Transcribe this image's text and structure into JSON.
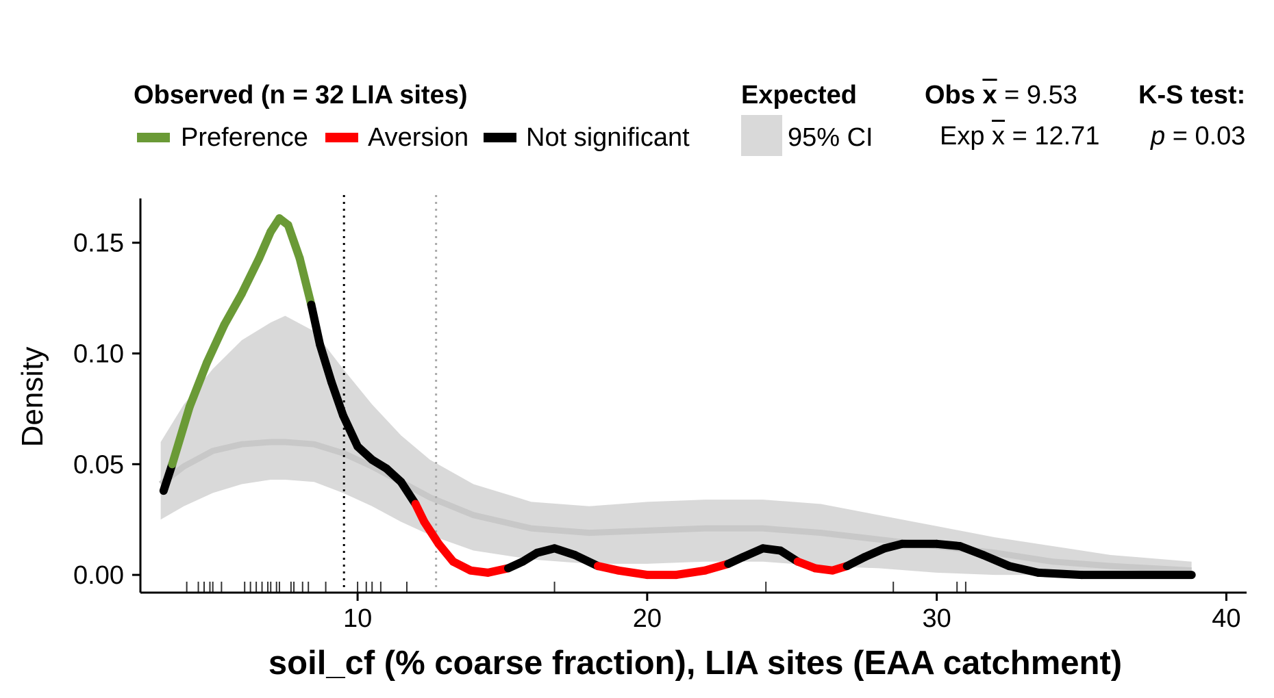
{
  "legend": {
    "observed_title": "Observed (n = 32 LIA sites)",
    "items": [
      {
        "label": "Preference",
        "color": "#6a9a36"
      },
      {
        "label": "Aversion",
        "color": "#ff0000"
      },
      {
        "label": "Not significant",
        "color": "#000000"
      }
    ],
    "expected_title": "Expected",
    "ci_label": "95% CI",
    "ci_color": "#d9d9d9",
    "obs_mean_prefix": "Obs",
    "obs_mean_symbol": "x",
    "obs_mean_value": " = 9.53",
    "exp_mean_prefix": "Exp",
    "exp_mean_symbol": "x",
    "exp_mean_value": " = 12.71",
    "ks_title": "K-S test:",
    "ks_p_symbol": "p",
    "ks_p_value": " = 0.03"
  },
  "chart_data": {
    "type": "line",
    "xlabel": "soil_cf (% coarse fraction), LIA sites (EAA catchment)",
    "ylabel": "Density",
    "xlim": [
      2.5,
      40.7
    ],
    "ylim": [
      -0.008,
      0.17
    ],
    "x_ticks": [
      10,
      20,
      30,
      40
    ],
    "y_ticks": [
      0.0,
      0.05,
      0.1,
      0.15
    ],
    "y_tick_labels": [
      "0.00",
      "0.05",
      "0.10",
      "0.15"
    ],
    "grid": false,
    "legend_position": "top",
    "observed_mean": 9.53,
    "expected_mean": 12.71,
    "ks_p": 0.03,
    "observed_density": [
      {
        "x": 3.3,
        "y": 0.038,
        "status": "ns"
      },
      {
        "x": 3.6,
        "y": 0.05,
        "status": "ns"
      },
      {
        "x": 4.2,
        "y": 0.076,
        "status": "pref"
      },
      {
        "x": 4.8,
        "y": 0.096,
        "status": "pref"
      },
      {
        "x": 5.4,
        "y": 0.113,
        "status": "pref"
      },
      {
        "x": 6.0,
        "y": 0.127,
        "status": "pref"
      },
      {
        "x": 6.6,
        "y": 0.143,
        "status": "pref"
      },
      {
        "x": 7.0,
        "y": 0.155,
        "status": "pref"
      },
      {
        "x": 7.3,
        "y": 0.161,
        "status": "pref"
      },
      {
        "x": 7.6,
        "y": 0.158,
        "status": "pref"
      },
      {
        "x": 8.0,
        "y": 0.143,
        "status": "pref"
      },
      {
        "x": 8.4,
        "y": 0.122,
        "status": "pref"
      },
      {
        "x": 8.7,
        "y": 0.104,
        "status": "ns"
      },
      {
        "x": 9.1,
        "y": 0.087,
        "status": "ns"
      },
      {
        "x": 9.5,
        "y": 0.072,
        "status": "ns"
      },
      {
        "x": 10.0,
        "y": 0.058,
        "status": "ns"
      },
      {
        "x": 10.5,
        "y": 0.052,
        "status": "ns"
      },
      {
        "x": 11.0,
        "y": 0.048,
        "status": "ns"
      },
      {
        "x": 11.5,
        "y": 0.042,
        "status": "ns"
      },
      {
        "x": 12.0,
        "y": 0.032,
        "status": "ns"
      },
      {
        "x": 12.3,
        "y": 0.024,
        "status": "aver"
      },
      {
        "x": 12.8,
        "y": 0.014,
        "status": "aver"
      },
      {
        "x": 13.3,
        "y": 0.006,
        "status": "aver"
      },
      {
        "x": 13.9,
        "y": 0.002,
        "status": "aver"
      },
      {
        "x": 14.5,
        "y": 0.001,
        "status": "aver"
      },
      {
        "x": 15.2,
        "y": 0.003,
        "status": "aver"
      },
      {
        "x": 15.7,
        "y": 0.006,
        "status": "ns"
      },
      {
        "x": 16.2,
        "y": 0.01,
        "status": "ns"
      },
      {
        "x": 16.8,
        "y": 0.012,
        "status": "ns"
      },
      {
        "x": 17.5,
        "y": 0.009,
        "status": "ns"
      },
      {
        "x": 18.3,
        "y": 0.004,
        "status": "ns"
      },
      {
        "x": 19.0,
        "y": 0.002,
        "status": "aver"
      },
      {
        "x": 20.0,
        "y": 0.0,
        "status": "aver"
      },
      {
        "x": 21.0,
        "y": 0.0,
        "status": "aver"
      },
      {
        "x": 22.0,
        "y": 0.002,
        "status": "aver"
      },
      {
        "x": 22.8,
        "y": 0.005,
        "status": "aver"
      },
      {
        "x": 23.3,
        "y": 0.008,
        "status": "ns"
      },
      {
        "x": 24.0,
        "y": 0.012,
        "status": "ns"
      },
      {
        "x": 24.6,
        "y": 0.011,
        "status": "ns"
      },
      {
        "x": 25.2,
        "y": 0.006,
        "status": "ns"
      },
      {
        "x": 25.8,
        "y": 0.003,
        "status": "aver"
      },
      {
        "x": 26.4,
        "y": 0.002,
        "status": "aver"
      },
      {
        "x": 26.9,
        "y": 0.004,
        "status": "aver"
      },
      {
        "x": 27.5,
        "y": 0.008,
        "status": "ns"
      },
      {
        "x": 28.2,
        "y": 0.012,
        "status": "ns"
      },
      {
        "x": 28.8,
        "y": 0.014,
        "status": "ns"
      },
      {
        "x": 30.0,
        "y": 0.014,
        "status": "ns"
      },
      {
        "x": 30.8,
        "y": 0.013,
        "status": "ns"
      },
      {
        "x": 31.6,
        "y": 0.009,
        "status": "ns"
      },
      {
        "x": 32.5,
        "y": 0.004,
        "status": "ns"
      },
      {
        "x": 33.5,
        "y": 0.001,
        "status": "ns"
      },
      {
        "x": 35.0,
        "y": 0.0,
        "status": "ns"
      },
      {
        "x": 38.8,
        "y": 0.0,
        "status": "ns"
      }
    ],
    "expected_density": {
      "x": [
        3.2,
        4.0,
        5.0,
        6.0,
        7.0,
        7.5,
        8.5,
        9.5,
        10.5,
        11.5,
        12.5,
        14.0,
        16.0,
        18.0,
        20.0,
        22.0,
        24.0,
        26.0,
        28.0,
        30.0,
        32.0,
        34.0,
        36.0,
        38.8
      ],
      "mean": [
        0.041,
        0.049,
        0.056,
        0.059,
        0.06,
        0.06,
        0.059,
        0.055,
        0.049,
        0.042,
        0.035,
        0.027,
        0.021,
        0.019,
        0.02,
        0.021,
        0.021,
        0.019,
        0.016,
        0.013,
        0.01,
        0.006,
        0.004,
        0.002
      ],
      "lower": [
        0.025,
        0.031,
        0.037,
        0.041,
        0.043,
        0.043,
        0.042,
        0.037,
        0.031,
        0.024,
        0.018,
        0.011,
        0.007,
        0.005,
        0.005,
        0.006,
        0.006,
        0.004,
        0.003,
        0.001,
        0.0,
        0.0,
        0.0,
        0.0
      ],
      "upper": [
        0.06,
        0.077,
        0.093,
        0.106,
        0.114,
        0.117,
        0.11,
        0.093,
        0.077,
        0.063,
        0.052,
        0.041,
        0.033,
        0.031,
        0.033,
        0.034,
        0.034,
        0.032,
        0.027,
        0.022,
        0.017,
        0.013,
        0.009,
        0.006
      ]
    },
    "rug_observed": [
      4.1,
      4.5,
      4.7,
      4.9,
      5.0,
      5.3,
      6.1,
      6.3,
      6.5,
      6.7,
      6.9,
      7.0,
      7.2,
      7.3,
      7.7,
      7.8,
      8.1,
      8.3,
      8.9,
      10.0,
      10.3,
      10.5,
      10.8,
      11.7,
      16.8,
      24.1,
      28.5,
      30.7,
      31.0
    ],
    "colors": {
      "preference": "#6a9a36",
      "aversion": "#ff0000",
      "not_significant": "#000000",
      "expected_ci": "#d9d9d9",
      "expected_mean": "#c8c8c8",
      "observed_mean_line": "#000000",
      "expected_mean_line": "#aaaaaa"
    }
  }
}
